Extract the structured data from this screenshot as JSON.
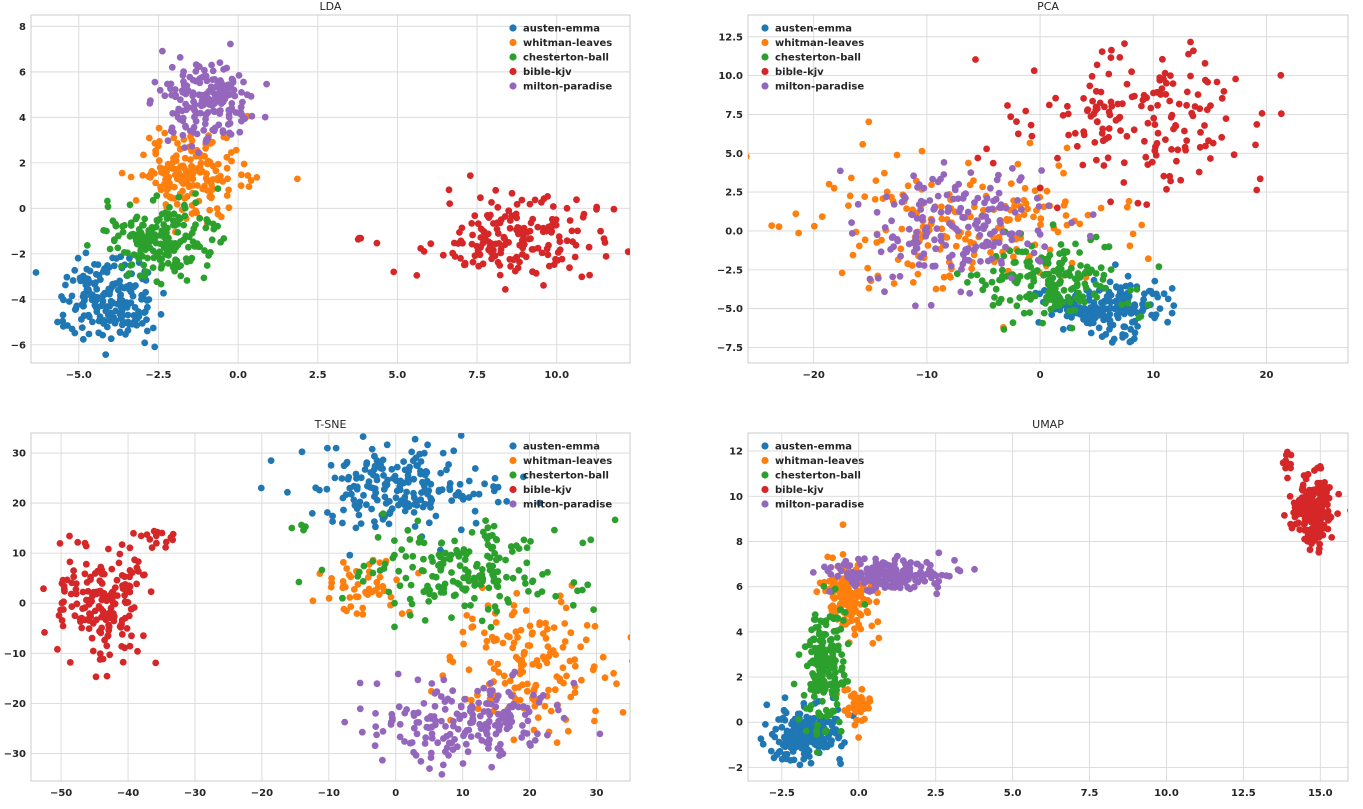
{
  "legend_entries": [
    {
      "name": "austen-emma",
      "color": "#1f77b4"
    },
    {
      "name": "whitman-leaves",
      "color": "#ff7f0e"
    },
    {
      "name": "chesterton-ball",
      "color": "#2ca02c"
    },
    {
      "name": "bible-kjv",
      "color": "#d62728"
    },
    {
      "name": "milton-paradise",
      "color": "#9467bd"
    }
  ],
  "chart_data": [
    {
      "type": "scatter",
      "title": "LDA",
      "xlabel": "",
      "ylabel": "",
      "xlim": [
        -6.5,
        12.3
      ],
      "ylim": [
        -6.8,
        8.5
      ],
      "xticks": [
        -5.0,
        -2.5,
        0.0,
        2.5,
        5.0,
        7.5,
        10.0
      ],
      "xtick_labels": [
        "−5.0",
        "−2.5",
        "0.0",
        "2.5",
        "5.0",
        "7.5",
        "10.0"
      ],
      "yticks": [
        -6,
        -4,
        -2,
        0,
        2,
        4,
        6,
        8
      ],
      "ytick_labels": [
        "−6",
        "−4",
        "−2",
        "0",
        "2",
        "4",
        "6",
        "8"
      ],
      "grid": true,
      "legend_position": "top-right",
      "series": [
        {
          "name": "austen-emma",
          "color": "#1f77b4",
          "clusters": [
            {
              "cx": -4.0,
              "cy": -4.0,
              "sx": 0.75,
              "sy": 0.9,
              "n": 190
            }
          ]
        },
        {
          "name": "whitman-leaves",
          "color": "#ff7f0e",
          "clusters": [
            {
              "cx": -1.5,
              "cy": 1.6,
              "sx": 0.8,
              "sy": 1.0,
              "n": 180
            }
          ]
        },
        {
          "name": "chesterton-ball",
          "color": "#2ca02c",
          "clusters": [
            {
              "cx": -2.5,
              "cy": -1.4,
              "sx": 0.85,
              "sy": 0.85,
              "n": 190
            }
          ]
        },
        {
          "name": "bible-kjv",
          "color": "#d62728",
          "clusters": [
            {
              "cx": 8.8,
              "cy": -1.3,
              "sx": 1.3,
              "sy": 0.9,
              "n": 180
            },
            {
              "cx": 3.85,
              "cy": -1.3,
              "sx": 0.05,
              "sy": 0.1,
              "n": 3
            }
          ]
        },
        {
          "name": "milton-paradise",
          "color": "#9467bd",
          "clusters": [
            {
              "cx": -1.0,
              "cy": 4.7,
              "sx": 0.8,
              "sy": 0.9,
              "n": 190
            }
          ]
        }
      ]
    },
    {
      "type": "scatter",
      "title": "PCA",
      "xlabel": "",
      "ylabel": "",
      "xlim": [
        -25.8,
        27.2
      ],
      "ylim": [
        -8.5,
        13.9
      ],
      "xticks": [
        -20,
        -10,
        0,
        10,
        20
      ],
      "xtick_labels": [
        "−20",
        "−10",
        "0",
        "10",
        "20"
      ],
      "yticks": [
        -7.5,
        -5.0,
        -2.5,
        0.0,
        2.5,
        5.0,
        7.5,
        10.0,
        12.5
      ],
      "ytick_labels": [
        "−7.5",
        "−5.0",
        "−2.5",
        "0.0",
        "2.5",
        "5.0",
        "7.5",
        "10.0",
        "12.5"
      ],
      "grid": true,
      "legend_position": "top-left",
      "series": [
        {
          "name": "austen-emma",
          "color": "#1f77b4",
          "clusters": [
            {
              "cx": 6.0,
              "cy": -5.0,
              "sx": 2.5,
              "sy": 0.9,
              "n": 180
            }
          ]
        },
        {
          "name": "whitman-leaves",
          "color": "#ff7f0e",
          "clusters": [
            {
              "cx": -7.0,
              "cy": 0.5,
              "sx": 7.0,
              "sy": 2.2,
              "n": 200
            }
          ]
        },
        {
          "name": "chesterton-ball",
          "color": "#2ca02c",
          "clusters": [
            {
              "cx": 1.0,
              "cy": -3.3,
              "sx": 3.5,
              "sy": 1.3,
              "n": 180
            }
          ]
        },
        {
          "name": "bible-kjv",
          "color": "#d62728",
          "clusters": [
            {
              "cx": 9.0,
              "cy": 7.0,
              "sx": 5.0,
              "sy": 2.2,
              "n": 170
            }
          ]
        },
        {
          "name": "milton-paradise",
          "color": "#9467bd",
          "clusters": [
            {
              "cx": -7.5,
              "cy": 0.3,
              "sx": 4.5,
              "sy": 1.8,
              "n": 190
            }
          ]
        }
      ]
    },
    {
      "type": "scatter",
      "title": "T-SNE",
      "xlabel": "",
      "ylabel": "",
      "xlim": [
        -54.5,
        35.0
      ],
      "ylim": [
        -35.5,
        34.0
      ],
      "xticks": [
        -50,
        -40,
        -30,
        -20,
        -10,
        0,
        10,
        20,
        30
      ],
      "xtick_labels": [
        "−50",
        "−40",
        "−30",
        "−20",
        "−10",
        "0",
        "10",
        "20",
        "30"
      ],
      "yticks": [
        -30,
        -20,
        -10,
        0,
        10,
        20,
        30
      ],
      "ytick_labels": [
        "−30",
        "−20",
        "−10",
        "0",
        "10",
        "20",
        "30"
      ],
      "grid": true,
      "legend_position": "top-right",
      "series": [
        {
          "name": "austen-emma",
          "color": "#1f77b4",
          "clusters": [
            {
              "cx": 0.0,
              "cy": 23.0,
              "sx": 6.5,
              "sy": 3.8,
              "n": 200
            }
          ]
        },
        {
          "name": "whitman-leaves",
          "color": "#ff7f0e",
          "clusters": [
            {
              "cx": 20.0,
              "cy": -13.0,
              "sx": 6.0,
              "sy": 6.5,
              "n": 160
            },
            {
              "cx": -5.0,
              "cy": 3.0,
              "sx": 4.0,
              "sy": 3.0,
              "n": 50
            }
          ]
        },
        {
          "name": "chesterton-ball",
          "color": "#2ca02c",
          "clusters": [
            {
              "cx": 10.0,
              "cy": 6.0,
              "sx": 8.0,
              "sy": 4.5,
              "n": 190
            },
            {
              "cx": -15.0,
              "cy": 15.0,
              "sx": 0.8,
              "sy": 0.4,
              "n": 4
            }
          ]
        },
        {
          "name": "bible-kjv",
          "color": "#d62728",
          "clusters": [
            {
              "cx": -44.0,
              "cy": 0.0,
              "sx": 3.5,
              "sy": 5.5,
              "n": 180
            },
            {
              "cx": -36.0,
              "cy": 13.0,
              "sx": 1.8,
              "sy": 1.2,
              "n": 15
            }
          ]
        },
        {
          "name": "milton-paradise",
          "color": "#9467bd",
          "clusters": [
            {
              "cx": 11.0,
              "cy": -24.0,
              "sx": 7.0,
              "sy": 3.8,
              "n": 200
            }
          ]
        }
      ]
    },
    {
      "type": "scatter",
      "title": "UMAP",
      "xlabel": "",
      "ylabel": "",
      "xlim": [
        -3.6,
        15.9
      ],
      "ylim": [
        -2.6,
        12.8
      ],
      "xticks": [
        -2.5,
        0.0,
        2.5,
        5.0,
        7.5,
        10.0,
        12.5,
        15.0
      ],
      "xtick_labels": [
        "−2.5",
        "0.0",
        "2.5",
        "5.0",
        "7.5",
        "10.0",
        "12.5",
        "15.0"
      ],
      "yticks": [
        -2,
        0,
        2,
        4,
        6,
        8,
        10,
        12
      ],
      "ytick_labels": [
        "−2",
        "0",
        "2",
        "4",
        "6",
        "8",
        "10",
        "12"
      ],
      "grid": true,
      "legend_position": "top-left",
      "series": [
        {
          "name": "austen-emma",
          "color": "#1f77b4",
          "clusters": [
            {
              "cx": -1.8,
              "cy": -0.5,
              "sx": 0.55,
              "sy": 0.55,
              "n": 200
            }
          ]
        },
        {
          "name": "whitman-leaves",
          "color": "#ff7f0e",
          "clusters": [
            {
              "cx": -0.3,
              "cy": 5.6,
              "sx": 0.45,
              "sy": 0.8,
              "n": 130
            },
            {
              "cx": 0.0,
              "cy": 0.6,
              "sx": 0.25,
              "sy": 0.4,
              "n": 40
            }
          ]
        },
        {
          "name": "chesterton-ball",
          "color": "#2ca02c",
          "clusters": [
            {
              "cx": -1.1,
              "cy": 2.6,
              "sx": 0.35,
              "sy": 1.3,
              "n": 190
            }
          ]
        },
        {
          "name": "bible-kjv",
          "color": "#d62728",
          "clusters": [
            {
              "cx": 14.7,
              "cy": 9.3,
              "sx": 0.3,
              "sy": 0.7,
              "n": 190
            },
            {
              "cx": 13.9,
              "cy": 11.7,
              "sx": 0.1,
              "sy": 0.3,
              "n": 10
            }
          ]
        },
        {
          "name": "milton-paradise",
          "color": "#9467bd",
          "clusters": [
            {
              "cx": 1.0,
              "cy": 6.5,
              "sx": 0.9,
              "sy": 0.35,
              "n": 200
            }
          ]
        }
      ]
    }
  ]
}
